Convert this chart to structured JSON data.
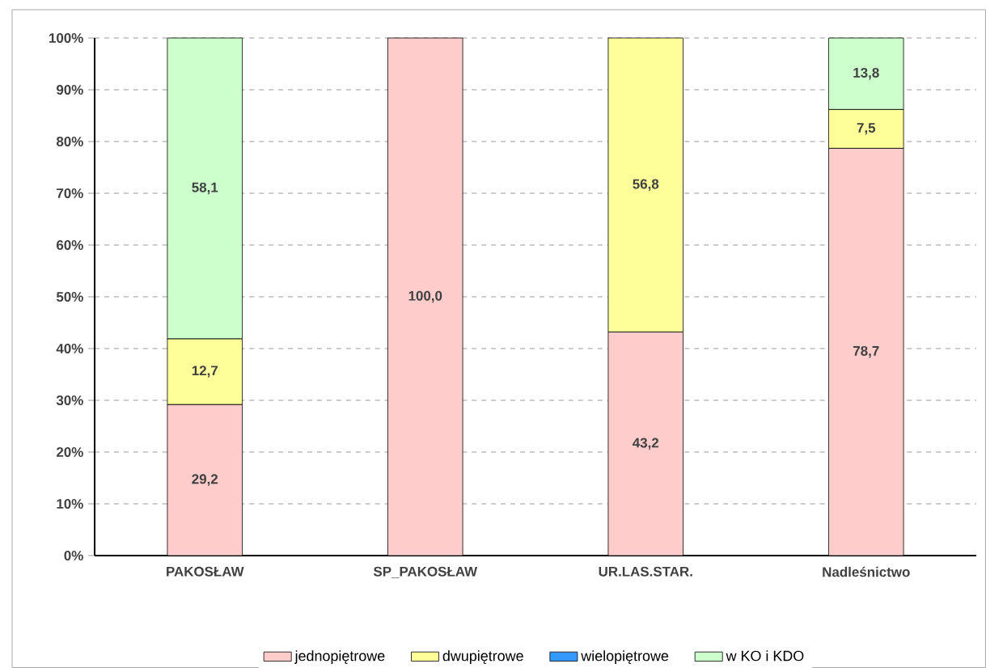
{
  "chart_data": {
    "type": "bar",
    "stacked": true,
    "categories": [
      "PAKOSŁAW",
      "SP_PAKOSŁAW",
      "UR.LAS.STAR.",
      "Nadleśnictwo"
    ],
    "series": [
      {
        "name": "jednopiętrowe",
        "color": "#ffcccc",
        "values": [
          29.2,
          100.0,
          43.2,
          78.7
        ],
        "value_labels": [
          "29,2",
          "100,0",
          "43,2",
          "78,7"
        ]
      },
      {
        "name": "dwupiętrowe",
        "color": "#ffff99",
        "values": [
          12.7,
          null,
          56.8,
          7.5
        ],
        "value_labels": [
          "12,7",
          null,
          "56,8",
          "7,5"
        ]
      },
      {
        "name": "wielopiętrowe",
        "color": "#3399ff",
        "values": [
          null,
          null,
          null,
          null
        ],
        "value_labels": [
          null,
          null,
          null,
          null
        ]
      },
      {
        "name": "w KO i KDO",
        "color": "#ccffcc",
        "values": [
          58.1,
          null,
          null,
          13.8
        ],
        "value_labels": [
          "58,1",
          null,
          null,
          "13,8"
        ]
      }
    ],
    "ylim": [
      0,
      100
    ],
    "yticks": [
      {
        "value": 0,
        "label": "0%"
      },
      {
        "value": 10,
        "label": "10%"
      },
      {
        "value": 20,
        "label": "20%"
      },
      {
        "value": 30,
        "label": "30%"
      },
      {
        "value": 40,
        "label": "40%"
      },
      {
        "value": 50,
        "label": "50%"
      },
      {
        "value": 60,
        "label": "60%"
      },
      {
        "value": 70,
        "label": "70%"
      },
      {
        "value": 80,
        "label": "80%"
      },
      {
        "value": 90,
        "label": "90%"
      },
      {
        "value": 100,
        "label": "100%"
      }
    ],
    "grid": "y",
    "legend": "bottom"
  }
}
